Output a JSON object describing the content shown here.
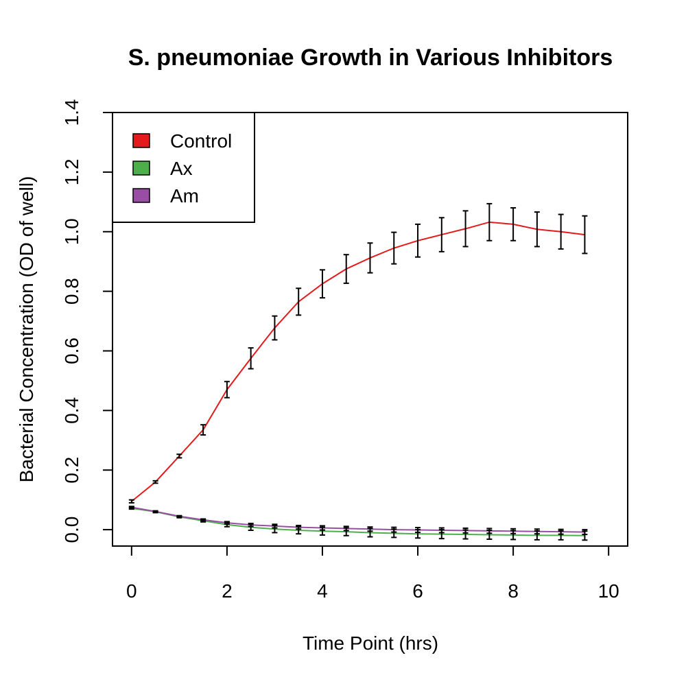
{
  "chart_data": {
    "type": "line",
    "title": "S. pneumoniae Growth in Various Inhibitors",
    "xlabel": "Time Point (hrs)",
    "ylabel": "Bacterial Concentration (OD of well)",
    "xlim": [
      -0.4,
      10.4
    ],
    "ylim": [
      -0.055,
      1.4
    ],
    "xticks": [
      "0",
      "2",
      "4",
      "6",
      "8",
      "10"
    ],
    "yticks": [
      "0.0",
      "0.2",
      "0.4",
      "0.6",
      "0.8",
      "1.0",
      "1.2",
      "1.4"
    ],
    "grid": false,
    "legend_position": "top-left",
    "x": [
      0,
      0.5,
      1,
      1.5,
      2,
      2.5,
      3,
      3.5,
      4,
      4.5,
      5,
      5.5,
      6,
      6.5,
      7,
      7.5,
      8,
      8.5,
      9,
      9.5
    ],
    "series": [
      {
        "name": "Control",
        "color": "#e41a1c",
        "values": [
          0.095,
          0.16,
          0.247,
          0.335,
          0.47,
          0.575,
          0.677,
          0.765,
          0.825,
          0.875,
          0.912,
          0.945,
          0.97,
          0.99,
          1.01,
          1.032,
          1.025,
          1.008,
          1.0,
          0.99
        ],
        "errors": [
          0.005,
          0.004,
          0.006,
          0.017,
          0.027,
          0.035,
          0.04,
          0.045,
          0.047,
          0.048,
          0.05,
          0.053,
          0.055,
          0.057,
          0.06,
          0.062,
          0.055,
          0.058,
          0.058,
          0.063
        ]
      },
      {
        "name": "Ax",
        "color": "#4daf4a",
        "values": [
          0.072,
          0.06,
          0.043,
          0.03,
          0.017,
          0.008,
          0.002,
          -0.002,
          -0.005,
          -0.007,
          -0.01,
          -0.012,
          -0.014,
          -0.015,
          -0.016,
          -0.017,
          -0.018,
          -0.019,
          -0.019,
          -0.02
        ],
        "errors": [
          0.003,
          0.003,
          0.003,
          0.004,
          0.007,
          0.01,
          0.012,
          0.012,
          0.013,
          0.013,
          0.014,
          0.014,
          0.014,
          0.015,
          0.015,
          0.015,
          0.015,
          0.015,
          0.015,
          0.015
        ]
      },
      {
        "name": "Am",
        "color": "#984ea3",
        "values": [
          0.075,
          0.061,
          0.045,
          0.033,
          0.023,
          0.016,
          0.012,
          0.008,
          0.006,
          0.004,
          0.002,
          0.0,
          -0.001,
          -0.002,
          -0.003,
          -0.004,
          -0.005,
          -0.006,
          -0.007,
          -0.008
        ],
        "errors": [
          0.003,
          0.002,
          0.002,
          0.003,
          0.004,
          0.005,
          0.006,
          0.006,
          0.007,
          0.007,
          0.007,
          0.008,
          0.008,
          0.008,
          0.008,
          0.008,
          0.008,
          0.008,
          0.008,
          0.008
        ]
      }
    ]
  }
}
